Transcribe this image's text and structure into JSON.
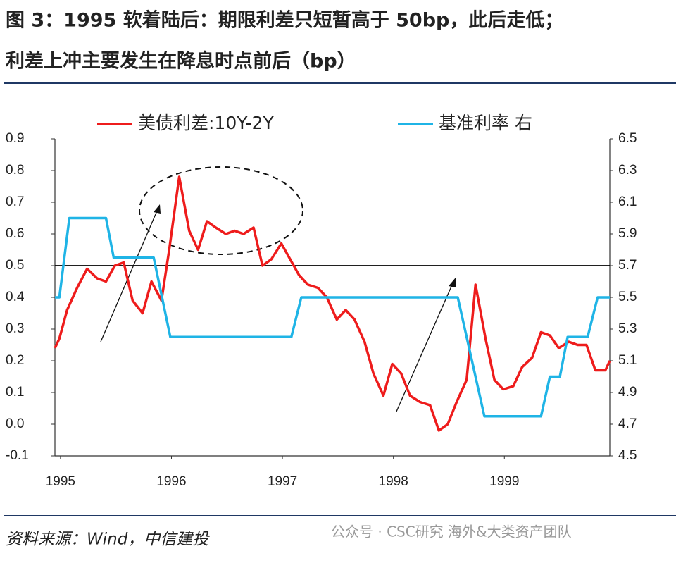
{
  "header": {
    "title_lines": [
      "图 3：1995 软着陆后：期限利差只短暂高于 50bp，此后走低；",
      "利差上冲主要发生在降息时点前后（bp）"
    ]
  },
  "chart_data": {
    "type": "line",
    "xlim": [
      1994.95,
      1999.95
    ],
    "xticks": [
      1995,
      1996,
      1997,
      1998,
      1999
    ],
    "ylim": [
      -0.1,
      0.9
    ],
    "yticks": [
      {
        "value": -0.1,
        "label": "-0.1"
      },
      {
        "value": 0,
        "label": "0.0"
      },
      0.1,
      0.2,
      0.3,
      0.4,
      0.5,
      0.6,
      0.7,
      0.8,
      0.9
    ],
    "y2lim": [
      4.5,
      6.5
    ],
    "y2ticks": [
      4.5,
      4.7,
      4.9,
      5.1,
      5.3,
      5.5,
      5.7,
      5.9,
      6.1,
      6.3,
      6.5
    ],
    "reference_line": 0.5,
    "series": [
      {
        "name": "美债利差:10Y-2Y",
        "color": "#ee1c1c",
        "x": [
          1994.95,
          1994.99,
          1995.06,
          1995.15,
          1995.24,
          1995.33,
          1995.41,
          1995.49,
          1995.57,
          1995.65,
          1995.74,
          1995.82,
          1995.91,
          1995.98,
          1996.07,
          1996.16,
          1996.24,
          1996.32,
          1996.4,
          1996.49,
          1996.57,
          1996.65,
          1996.74,
          1996.82,
          1996.9,
          1996.99,
          1997.07,
          1997.15,
          1997.23,
          1997.32,
          1997.4,
          1997.49,
          1997.57,
          1997.65,
          1997.74,
          1997.82,
          1997.91,
          1997.99,
          1998.07,
          1998.15,
          1998.24,
          1998.33,
          1998.41,
          1998.49,
          1998.57,
          1998.66,
          1998.74,
          1998.83,
          1998.91,
          1998.99,
          1999.08,
          1999.16,
          1999.25,
          1999.33,
          1999.41,
          1999.49,
          1999.58,
          1999.66,
          1999.74,
          1999.82,
          1999.91,
          1999.95
        ],
        "values": [
          0.24,
          0.27,
          0.36,
          0.43,
          0.49,
          0.46,
          0.45,
          0.5,
          0.51,
          0.39,
          0.35,
          0.45,
          0.39,
          0.55,
          0.78,
          0.61,
          0.55,
          0.64,
          0.62,
          0.6,
          0.61,
          0.6,
          0.62,
          0.5,
          0.52,
          0.57,
          0.52,
          0.47,
          0.44,
          0.43,
          0.4,
          0.33,
          0.36,
          0.33,
          0.26,
          0.16,
          0.09,
          0.19,
          0.16,
          0.09,
          0.07,
          0.06,
          -0.02,
          0.0,
          0.07,
          0.14,
          0.44,
          0.27,
          0.14,
          0.11,
          0.12,
          0.18,
          0.21,
          0.29,
          0.28,
          0.24,
          0.26,
          0.25,
          0.25,
          0.17,
          0.17,
          0.2
        ]
      },
      {
        "name": "基准利率 右",
        "color": "#1fb4e6",
        "axis": "y2",
        "x": [
          1994.95,
          1994.99,
          1995.08,
          1995.41,
          1995.48,
          1995.84,
          1995.99,
          1997.08,
          1997.17,
          1998.58,
          1998.82,
          1999.33,
          1999.41,
          1999.5,
          1999.57,
          1999.75,
          1999.84,
          1999.95
        ],
        "values": [
          5.5,
          5.5,
          6.0,
          6.0,
          5.75,
          5.75,
          5.25,
          5.25,
          5.5,
          5.5,
          4.75,
          4.75,
          5.0,
          5.0,
          5.25,
          5.25,
          5.5,
          5.5
        ]
      }
    ]
  },
  "footer": {
    "source": "资料来源：Wind，中信建投",
    "watermark": "公众号 · CSC研究 海外&大类资产团队"
  }
}
